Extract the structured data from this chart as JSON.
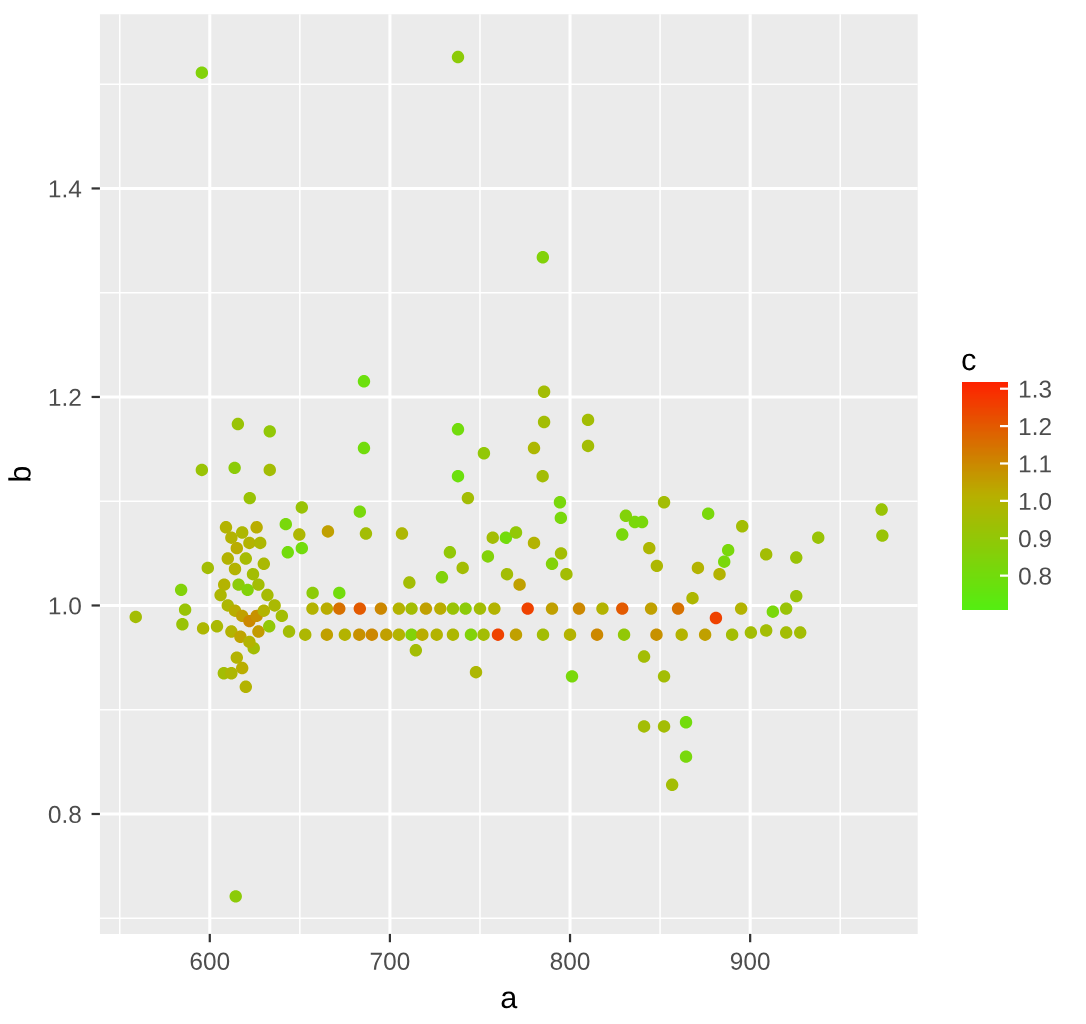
{
  "chart_data": {
    "type": "scatter",
    "xlabel": "a",
    "ylabel": "b",
    "clabel": "c",
    "xlim": [
      539,
      993
    ],
    "xticks": [
      600,
      700,
      800,
      900
    ],
    "ylim": [
      0.685,
      1.567
    ],
    "yticks": [
      0.8,
      {
        "value": 1.0,
        "label": "1.0"
      },
      1.2,
      1.4
    ],
    "clim": [
      0.71,
      1.32
    ],
    "cticks": [
      0.8,
      0.9,
      {
        "value": 1.0,
        "label": "1.0"
      },
      1.1,
      1.2,
      1.3
    ],
    "grid": true,
    "marker": "circle",
    "x": [
      595.6,
      737.8,
      784.9,
      685.6,
      615.6,
      633.3,
      685.6,
      737.8,
      752.2,
      737.8,
      595.6,
      613.8,
      633.3,
      622.2,
      651.1,
      743.3,
      683.3,
      558.9,
      584.1,
      586.3,
      584.8,
      598.9,
      596.3,
      607.8,
      620,
      624.4,
      642.2,
      643.3,
      651.1,
      665.6,
      649.7,
      706.7,
      686.7,
      671.9,
      657.1,
      710.8,
      714.4,
      747.8,
      757.1,
      764.4,
      733.3,
      754.4,
      740.4,
      728.9,
      612,
      615,
      618,
      622,
      626,
      628,
      610,
      620,
      614,
      624,
      630,
      608,
      616,
      621,
      627,
      632,
      610,
      614,
      618,
      622,
      626,
      630,
      612,
      617,
      622,
      627,
      633,
      606,
      636,
      640,
      644,
      615,
      618,
      612,
      604,
      609,
      657,
      665,
      671.9,
      683.3,
      695,
      705,
      712,
      720,
      728,
      735,
      742,
      750,
      758,
      653,
      665,
      675,
      683,
      690,
      698,
      705,
      712,
      718,
      726,
      735,
      745,
      752,
      760,
      785.6,
      785.6,
      810,
      780,
      810,
      784.8,
      794.4,
      794.9,
      852.2,
      876.7,
      836,
      895.6,
      973,
      973.4,
      937.8,
      908.9,
      925.6,
      925.6,
      920,
      927.8,
      920,
      900.4,
      908.9,
      887.8,
      885.6,
      848.2,
      841.1,
      852.2,
      801.1,
      841.1,
      852.2,
      864.4,
      864.4,
      856.7,
      614.4,
      776.5,
      790,
      805,
      818,
      829,
      845,
      860,
      881,
      895,
      770,
      785,
      800,
      815,
      830,
      848,
      862,
      875,
      890,
      780,
      790,
      772,
      798,
      831,
      829,
      844,
      871,
      883,
      868,
      912.6,
      840,
      765,
      770,
      795
    ],
    "values": [
      1.511,
      1.526,
      1.334,
      1.215,
      1.174,
      1.167,
      1.151,
      1.169,
      1.146,
      1.124,
      1.13,
      1.132,
      1.13,
      1.103,
      1.094,
      1.103,
      1.09,
      0.989,
      1.015,
      0.996,
      0.982,
      1.036,
      0.978,
      0.935,
      0.922,
      0.959,
      1.078,
      1.051,
      1.055,
      1.071,
      1.068,
      1.069,
      1.069,
      1.012,
      1.012,
      1.022,
      0.957,
      0.936,
      1.065,
      1.065,
      1.051,
      1.047,
      1.036,
      1.027,
      1.065,
      1.055,
      1.07,
      1.06,
      1.075,
      1.06,
      1.045,
      1.045,
      1.035,
      1.03,
      1.04,
      1.02,
      1.02,
      1.015,
      1.02,
      1.01,
      1.0,
      0.995,
      0.99,
      0.985,
      0.99,
      0.995,
      0.975,
      0.97,
      0.965,
      0.975,
      0.98,
      1.01,
      1.0,
      0.99,
      0.975,
      0.95,
      0.94,
      0.935,
      0.98,
      1.075,
      0.997,
      0.997,
      0.997,
      0.997,
      0.997,
      0.997,
      0.997,
      0.997,
      0.997,
      0.997,
      0.997,
      0.997,
      0.997,
      0.972,
      0.972,
      0.972,
      0.972,
      0.972,
      0.972,
      0.972,
      0.972,
      0.972,
      0.972,
      0.972,
      0.972,
      0.972,
      0.972,
      1.205,
      1.176,
      1.178,
      1.151,
      1.153,
      1.124,
      1.099,
      1.084,
      1.099,
      1.088,
      1.08,
      1.076,
      1.092,
      1.067,
      1.065,
      1.049,
      1.046,
      1.009,
      0.997,
      0.974,
      0.974,
      0.974,
      0.976,
      1.053,
      1.042,
      1.038,
      0.951,
      0.932,
      0.932,
      0.884,
      0.884,
      0.888,
      0.855,
      0.828,
      0.721,
      0.997,
      0.997,
      0.997,
      0.997,
      0.997,
      0.997,
      0.997,
      0.988,
      0.997,
      0.972,
      0.972,
      0.972,
      0.972,
      0.972,
      0.972,
      0.972,
      0.972,
      0.972,
      1.06,
      1.04,
      1.02,
      1.03,
      1.086,
      1.068,
      1.055,
      1.036,
      1.03,
      1.007,
      0.994,
      1.08,
      1.03,
      1.07,
      1.05
    ],
    "cvalues": [
      0.85,
      0.88,
      0.85,
      0.78,
      0.92,
      0.9,
      0.8,
      0.8,
      0.9,
      0.78,
      0.92,
      0.88,
      0.95,
      0.92,
      0.92,
      0.95,
      0.82,
      0.95,
      0.85,
      0.92,
      0.92,
      0.95,
      0.98,
      0.95,
      1.0,
      0.95,
      0.82,
      0.8,
      0.8,
      1.05,
      0.98,
      0.98,
      0.95,
      0.8,
      0.88,
      0.95,
      0.95,
      0.98,
      0.95,
      0.8,
      0.9,
      0.85,
      0.95,
      0.85,
      1.0,
      1.02,
      0.98,
      1.0,
      1.02,
      0.98,
      1.0,
      0.96,
      1.0,
      0.95,
      0.97,
      1.0,
      0.88,
      0.85,
      0.95,
      0.96,
      0.98,
      1.02,
      1.05,
      1.1,
      1.08,
      1.0,
      1.0,
      1.04,
      1.0,
      1.06,
      0.9,
      0.98,
      0.97,
      0.95,
      0.95,
      1.0,
      1.02,
      0.98,
      0.97,
      1.0,
      1.0,
      1.02,
      1.15,
      1.2,
      1.1,
      1.0,
      0.95,
      1.05,
      1.02,
      0.92,
      0.88,
      0.95,
      1.0,
      0.98,
      1.05,
      1.0,
      1.08,
      1.1,
      1.05,
      1.0,
      0.85,
      1.02,
      1.0,
      0.98,
      0.85,
      0.95,
      1.25,
      0.95,
      0.95,
      0.95,
      0.98,
      0.95,
      0.95,
      0.82,
      0.82,
      0.95,
      0.82,
      0.82,
      0.95,
      0.92,
      0.92,
      0.92,
      0.95,
      0.92,
      0.92,
      0.92,
      0.95,
      0.95,
      0.95,
      0.95,
      0.82,
      0.82,
      0.98,
      0.95,
      0.95,
      0.82,
      0.95,
      0.95,
      0.8,
      0.82,
      0.95,
      0.88,
      1.25,
      1.05,
      1.1,
      1.0,
      1.2,
      1.05,
      1.15,
      1.25,
      1.0,
      1.05,
      0.95,
      1.0,
      1.1,
      0.9,
      1.08,
      1.0,
      1.05,
      0.95,
      1.0,
      0.85,
      1.05,
      0.95,
      0.85,
      0.82,
      0.98,
      1.0,
      1.0,
      0.98,
      0.82,
      0.82,
      0.95,
      0.9,
      0.95
    ]
  }
}
